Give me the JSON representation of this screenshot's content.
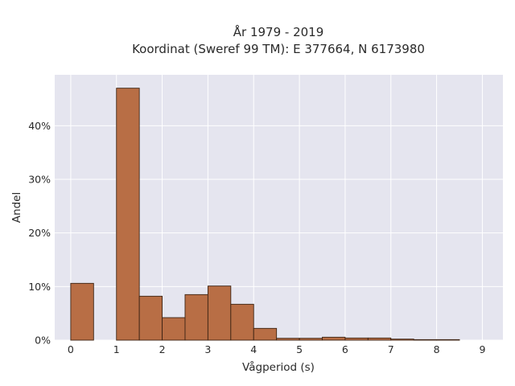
{
  "chart_data": {
    "type": "bar",
    "title": "År 1979 - 2019",
    "subtitle": "Koordinat (Sweref 99 TM): E 377664, N 6173980",
    "xlabel": "Vågperiod (s)",
    "ylabel": "Andel",
    "xlim": [
      -0.35,
      9.45
    ],
    "ylim": [
      0,
      49.5
    ],
    "x_ticks": [
      0,
      1,
      2,
      3,
      4,
      5,
      6,
      7,
      8,
      9
    ],
    "y_ticks": [
      0,
      10,
      20,
      30,
      40
    ],
    "y_tick_labels": [
      "0%",
      "10%",
      "20%",
      "30%",
      "40%"
    ],
    "grid": true,
    "bar_color": "#b86e45",
    "bins": [
      {
        "x0": 0.0,
        "x1": 0.5,
        "value": 10.6
      },
      {
        "x0": 1.0,
        "x1": 1.5,
        "value": 47.0
      },
      {
        "x0": 1.5,
        "x1": 2.0,
        "value": 8.2
      },
      {
        "x0": 2.0,
        "x1": 2.5,
        "value": 4.2
      },
      {
        "x0": 2.5,
        "x1": 3.0,
        "value": 8.5
      },
      {
        "x0": 3.0,
        "x1": 3.5,
        "value": 10.1
      },
      {
        "x0": 3.5,
        "x1": 4.0,
        "value": 6.7
      },
      {
        "x0": 4.0,
        "x1": 4.5,
        "value": 2.2
      },
      {
        "x0": 4.5,
        "x1": 5.0,
        "value": 0.35
      },
      {
        "x0": 5.0,
        "x1": 5.5,
        "value": 0.35
      },
      {
        "x0": 5.5,
        "x1": 6.0,
        "value": 0.55
      },
      {
        "x0": 6.0,
        "x1": 6.5,
        "value": 0.4
      },
      {
        "x0": 6.5,
        "x1": 7.0,
        "value": 0.4
      },
      {
        "x0": 7.0,
        "x1": 7.5,
        "value": 0.2
      },
      {
        "x0": 7.5,
        "x1": 8.0,
        "value": 0.1
      },
      {
        "x0": 8.0,
        "x1": 8.5,
        "value": 0.1
      }
    ]
  }
}
